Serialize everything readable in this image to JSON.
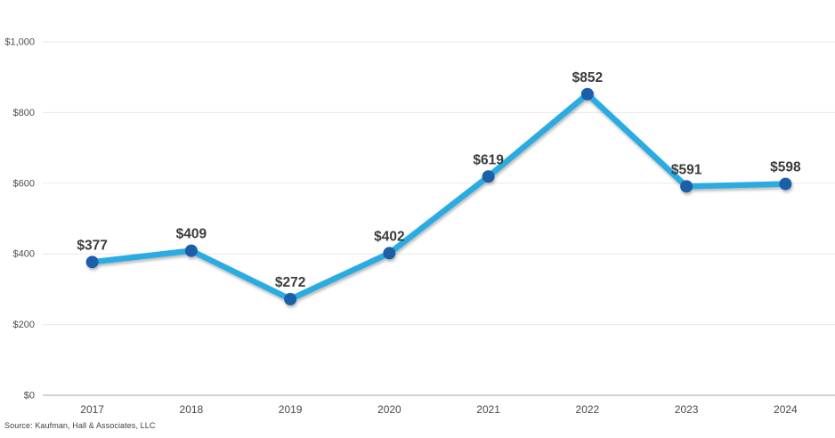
{
  "chart_data": {
    "type": "line",
    "categories": [
      "2017",
      "2018",
      "2019",
      "2020",
      "2021",
      "2022",
      "2023",
      "2024"
    ],
    "values": [
      377,
      409,
      272,
      402,
      619,
      852,
      591,
      598
    ],
    "point_labels": [
      "$377",
      "$409",
      "$272",
      "$402",
      "$619",
      "$852",
      "$591",
      "$598"
    ],
    "title": "",
    "xlabel": "",
    "ylabel": "",
    "ylim": [
      0,
      1000
    ],
    "ytick_values": [
      0,
      200,
      400,
      600,
      800,
      1000
    ],
    "ytick_labels": [
      "$0",
      "$200",
      "$400",
      "$600",
      "$800",
      "$1,000"
    ],
    "grid": "horizontal",
    "legend": "none",
    "colors": {
      "line": "#29abe2",
      "marker": "#1c5fa9",
      "data_label": "#3b3b3b",
      "grid_line": "#e9e9e9",
      "axis_line": "#a6a6a6",
      "tick_label": "#4a4e54"
    }
  },
  "source_note": "Source: Kaufman, Hall & Associates, LLC"
}
